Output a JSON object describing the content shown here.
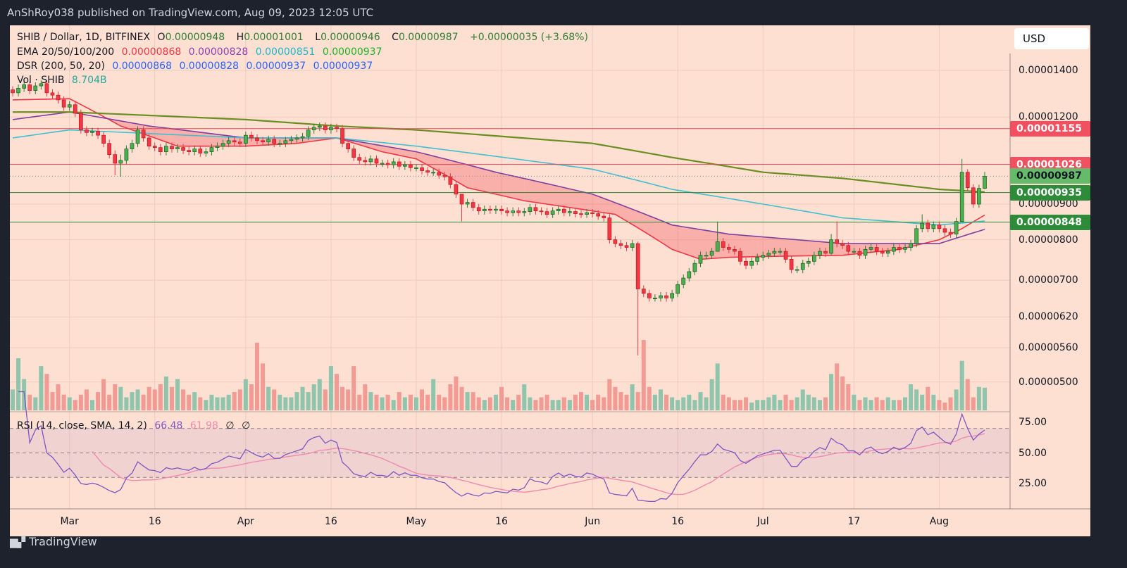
{
  "header": {
    "published": "AnShRoy038 published on TradingView.com, Aug 09, 2023 12:05 UTC"
  },
  "legend": {
    "symbol": "SHIB / Dollar, 1D, BITFINEX",
    "o_label": "O",
    "o": "0.00000948",
    "h_label": "H",
    "h": "0.00001001",
    "l_label": "L",
    "l": "0.00000946",
    "c_label": "C",
    "c": "0.00000987",
    "change": "+0.00000035 (+3.68%)",
    "ema_label": "EMA 20/50/100/200",
    "ema_values": [
      "0.00000868",
      "0.00000828",
      "0.00000851",
      "0.00000937"
    ],
    "dsr_label": "DSR (200, 50, 20)",
    "dsr_values": [
      "0.00000868",
      "0.00000828",
      "0.00000937",
      "0.00000937"
    ],
    "vol_label": "Vol · SHIB",
    "vol_value": "8.704B",
    "rsi_label": "RSI (14, close, SMA, 14, 2)",
    "rsi_values": [
      "66.48",
      "61.98",
      "∅",
      "∅"
    ]
  },
  "currency": "USD",
  "footer": {
    "brand": "TradingView",
    "logo": "TV"
  },
  "colors": {
    "up": "#4caf50",
    "down": "#f23645",
    "vol_up": "#8fc4ad",
    "vol_down": "#f29a94",
    "ema20": "#f23645",
    "ema50": "#7e3fa0",
    "ema100": "#3fbfd0",
    "ema200": "#6b8e23",
    "rsi": "#7e57c2",
    "rsi_sma": "#f08ab0",
    "bg": "#fde0d2"
  },
  "chart_data": {
    "type": "candlestick",
    "price_scale": "log",
    "price_ticks": [
      "0.00001400",
      "0.00001200",
      "0.00000900",
      "0.00000800",
      "0.00000700",
      "0.00000620",
      "0.00000560",
      "0.00000500"
    ],
    "x_ticks": [
      [
        "2023-03-01",
        "Mar"
      ],
      [
        "2023-03-16",
        "16"
      ],
      [
        "2023-04-01",
        "Apr"
      ],
      [
        "2023-04-16",
        "16"
      ],
      [
        "2023-05-01",
        "May"
      ],
      [
        "2023-05-16",
        "16"
      ],
      [
        "2023-06-01",
        "Jun"
      ],
      [
        "2023-06-16",
        "16"
      ],
      [
        "2023-07-01",
        "Jul"
      ],
      [
        "2023-07-17",
        "17"
      ],
      [
        "2023-08-01",
        "Aug"
      ]
    ],
    "levels": [
      {
        "price": "0.00001155",
        "color": "#f0505f",
        "text_color": "#ffffff"
      },
      {
        "price": "0.00001026",
        "color": "#f0505f",
        "text_color": "#ffffff"
      },
      {
        "price": "0.00000987",
        "color": "#66bb6a",
        "text_color": "#131722",
        "dotted": true
      },
      {
        "price": "0.00000935",
        "color": "#2e8b3a",
        "text_color": "#ffffff"
      },
      {
        "price": "0.00000848",
        "color": "#2e8b3a",
        "text_color": "#ffffff"
      }
    ],
    "rsi_ticks": [
      "75.00",
      "50.00",
      "25.00"
    ],
    "rsi_band": [
      30,
      70
    ],
    "candles_note_fields": [
      "date",
      "close",
      "volume_B",
      "high",
      "low"
    ],
    "candles": [
      [
        "2023-02-19",
        1.3e-05,
        8
      ],
      [
        "2023-02-20",
        1.32e-05,
        20
      ],
      [
        "2023-02-21",
        1.335e-05,
        12
      ],
      [
        "2023-02-22",
        1.31e-05,
        6
      ],
      [
        "2023-02-23",
        1.33e-05,
        5
      ],
      [
        "2023-02-24",
        1.34e-05,
        17
      ],
      [
        "2023-02-25",
        1.3e-05,
        14
      ],
      [
        "2023-02-26",
        1.29e-05,
        7
      ],
      [
        "2023-02-27",
        1.27e-05,
        10
      ],
      [
        "2023-02-28",
        1.24e-05,
        6
      ],
      [
        "2023-03-01",
        1.25e-05,
        5
      ],
      [
        "2023-03-02",
        1.215e-05,
        4
      ],
      [
        "2023-03-03",
        1.15e-05,
        6
      ],
      [
        "2023-03-04",
        1.14e-05,
        8
      ],
      [
        "2023-03-05",
        1.145e-05,
        4
      ],
      [
        "2023-03-06",
        1.13e-05,
        7
      ],
      [
        "2023-03-07",
        1.1e-05,
        12
      ],
      [
        "2023-03-08",
        1.06e-05,
        6
      ],
      [
        "2023-03-09",
        1.03e-05,
        10,
        1.075e-05,
        9.9e-06
      ],
      [
        "2023-03-10",
        1.04e-05,
        9,
        1.06e-05,
        9.85e-06
      ],
      [
        "2023-03-11",
        1.08e-05,
        5
      ],
      [
        "2023-03-12",
        1.1e-05,
        7
      ],
      [
        "2023-03-13",
        1.15e-05,
        8
      ],
      [
        "2023-03-14",
        1.12e-05,
        6
      ],
      [
        "2023-03-15",
        1.09e-05,
        9
      ],
      [
        "2023-03-16",
        1.085e-05,
        8
      ],
      [
        "2023-03-17",
        1.07e-05,
        10
      ],
      [
        "2023-03-18",
        1.09e-05,
        13
      ],
      [
        "2023-03-19",
        1.08e-05,
        9
      ],
      [
        "2023-03-20",
        1.085e-05,
        12
      ],
      [
        "2023-03-21",
        1.075e-05,
        8
      ],
      [
        "2023-03-22",
        1.07e-05,
        6
      ],
      [
        "2023-03-23",
        1.08e-05,
        7
      ],
      [
        "2023-03-24",
        1.065e-05,
        5
      ],
      [
        "2023-03-25",
        1.07e-05,
        4
      ],
      [
        "2023-03-26",
        1.085e-05,
        6
      ],
      [
        "2023-03-27",
        1.09e-05,
        5
      ],
      [
        "2023-03-28",
        1.1e-05,
        5
      ],
      [
        "2023-03-29",
        1.11e-05,
        6
      ],
      [
        "2023-03-30",
        1.105e-05,
        7
      ],
      [
        "2023-03-31",
        1.1e-05,
        8
      ],
      [
        "2023-04-01",
        1.13e-05,
        12
      ],
      [
        "2023-04-02",
        1.12e-05,
        10
      ],
      [
        "2023-04-03",
        1.11e-05,
        26
      ],
      [
        "2023-04-04",
        1.105e-05,
        18
      ],
      [
        "2023-04-05",
        1.115e-05,
        9
      ],
      [
        "2023-04-06",
        1.1e-05,
        8
      ],
      [
        "2023-04-07",
        1.1e-05,
        6
      ],
      [
        "2023-04-08",
        1.11e-05,
        5
      ],
      [
        "2023-04-09",
        1.115e-05,
        5
      ],
      [
        "2023-04-10",
        1.12e-05,
        7
      ],
      [
        "2023-04-11",
        1.125e-05,
        9
      ],
      [
        "2023-04-12",
        1.15e-05,
        7
      ],
      [
        "2023-04-13",
        1.16e-05,
        10
      ],
      [
        "2023-04-14",
        1.165e-05,
        12
      ],
      [
        "2023-04-15",
        1.15e-05,
        8
      ],
      [
        "2023-04-16",
        1.16e-05,
        17
      ],
      [
        "2023-04-17",
        1.155e-05,
        14
      ],
      [
        "2023-04-18",
        1.1e-05,
        9
      ],
      [
        "2023-04-19",
        1.08e-05,
        8
      ],
      [
        "2023-04-20",
        1.05e-05,
        17
      ],
      [
        "2023-04-21",
        1.04e-05,
        6
      ],
      [
        "2023-04-22",
        1.035e-05,
        10
      ],
      [
        "2023-04-23",
        1.045e-05,
        7
      ],
      [
        "2023-04-24",
        1.03e-05,
        6
      ],
      [
        "2023-04-25",
        1.03e-05,
        5
      ],
      [
        "2023-04-26",
        1.025e-05,
        6
      ],
      [
        "2023-04-27",
        1.035e-05,
        4
      ],
      [
        "2023-04-28",
        1.02e-05,
        7
      ],
      [
        "2023-04-29",
        1.025e-05,
        5
      ],
      [
        "2023-04-30",
        1.015e-05,
        6
      ],
      [
        "2023-05-01",
        1.015e-05,
        5
      ],
      [
        "2023-05-02",
        1.005e-05,
        8
      ],
      [
        "2023-05-03",
        1e-05,
        6
      ],
      [
        "2023-05-04",
        1e-05,
        12
      ],
      [
        "2023-05-05",
        9.9e-06,
        6
      ],
      [
        "2023-05-06",
        9.85e-06,
        5
      ],
      [
        "2023-05-07",
        9.6e-06,
        10
      ],
      [
        "2023-05-08",
        9.3e-06,
        13
      ],
      [
        "2023-05-09",
        9e-06,
        9,
        9.3e-06,
        8.5e-06
      ],
      [
        "2023-05-10",
        9.05e-06,
        7
      ],
      [
        "2023-05-11",
        8.9e-06,
        7
      ],
      [
        "2023-05-12",
        8.8e-06,
        5
      ],
      [
        "2023-05-13",
        8.85e-06,
        4
      ],
      [
        "2023-05-14",
        8.82e-06,
        5
      ],
      [
        "2023-05-15",
        8.85e-06,
        6
      ],
      [
        "2023-05-16",
        8.8e-06,
        9
      ],
      [
        "2023-05-17",
        8.75e-06,
        5
      ],
      [
        "2023-05-18",
        8.8e-06,
        4
      ],
      [
        "2023-05-19",
        8.75e-06,
        6
      ],
      [
        "2023-05-20",
        8.78e-06,
        10
      ],
      [
        "2023-05-21",
        8.9e-06,
        5
      ],
      [
        "2023-05-22",
        8.8e-06,
        4
      ],
      [
        "2023-05-23",
        8.78e-06,
        5
      ],
      [
        "2023-05-24",
        8.7e-06,
        6
      ],
      [
        "2023-05-25",
        8.8e-06,
        4
      ],
      [
        "2023-05-26",
        8.85e-06,
        4
      ],
      [
        "2023-05-27",
        8.75e-06,
        5
      ],
      [
        "2023-05-28",
        8.78e-06,
        4
      ],
      [
        "2023-05-29",
        8.72e-06,
        6
      ],
      [
        "2023-05-30",
        8.7e-06,
        7
      ],
      [
        "2023-05-31",
        8.75e-06,
        6
      ],
      [
        "2023-06-01",
        8.72e-06,
        4
      ],
      [
        "2023-06-02",
        8.65e-06,
        6
      ],
      [
        "2023-06-03",
        8.6e-06,
        5
      ],
      [
        "2023-06-04",
        8e-06,
        12
      ],
      [
        "2023-06-05",
        7.9e-06,
        9
      ],
      [
        "2023-06-06",
        7.85e-06,
        7
      ],
      [
        "2023-06-07",
        7.8e-06,
        6
      ],
      [
        "2023-06-08",
        7.9e-06,
        10
      ],
      [
        "2023-06-09",
        6.8e-06,
        7,
        7.95e-06,
        5.46e-06
      ],
      [
        "2023-06-10",
        6.7e-06,
        27
      ],
      [
        "2023-06-11",
        6.6e-06,
        9
      ],
      [
        "2023-06-12",
        6.6e-06,
        6
      ],
      [
        "2023-06-13",
        6.65e-06,
        8
      ],
      [
        "2023-06-14",
        6.6e-06,
        6
      ],
      [
        "2023-06-15",
        6.7e-06,
        5
      ],
      [
        "2023-06-16",
        6.9e-06,
        4
      ],
      [
        "2023-06-17",
        7.05e-06,
        5
      ],
      [
        "2023-06-18",
        7.2e-06,
        6
      ],
      [
        "2023-06-19",
        7.4e-06,
        4
      ],
      [
        "2023-06-20",
        7.6e-06,
        7
      ],
      [
        "2023-06-21",
        7.6e-06,
        5
      ],
      [
        "2023-06-22",
        7.7e-06,
        12
      ],
      [
        "2023-06-23",
        7.95e-06,
        18,
        8.5e-06,
        7.8e-06
      ],
      [
        "2023-06-24",
        7.8e-06,
        6
      ],
      [
        "2023-06-25",
        7.75e-06,
        5
      ],
      [
        "2023-06-26",
        7.7e-06,
        4
      ],
      [
        "2023-06-27",
        7.45e-06,
        4
      ],
      [
        "2023-06-28",
        7.35e-06,
        5
      ],
      [
        "2023-06-29",
        7.45e-06,
        3
      ],
      [
        "2023-06-30",
        7.55e-06,
        4
      ],
      [
        "2023-07-01",
        7.6e-06,
        4
      ],
      [
        "2023-07-02",
        7.65e-06,
        5
      ],
      [
        "2023-07-03",
        7.7e-06,
        6
      ],
      [
        "2023-07-04",
        7.7e-06,
        4
      ],
      [
        "2023-07-05",
        7.5e-06,
        6
      ],
      [
        "2023-07-06",
        7.25e-06,
        4
      ],
      [
        "2023-07-07",
        7.25e-06,
        5
      ],
      [
        "2023-07-08",
        7.4e-06,
        8
      ],
      [
        "2023-07-09",
        7.45e-06,
        6
      ],
      [
        "2023-07-10",
        7.6e-06,
        5
      ],
      [
        "2023-07-11",
        7.7e-06,
        4
      ],
      [
        "2023-07-12",
        7.65e-06,
        5
      ],
      [
        "2023-07-13",
        8e-06,
        14,
        8.15e-06,
        7.6e-06
      ],
      [
        "2023-07-14",
        7.9e-06,
        18,
        8.5e-06,
        7.8e-06
      ],
      [
        "2023-07-15",
        7.85e-06,
        13
      ],
      [
        "2023-07-16",
        7.7e-06,
        10
      ],
      [
        "2023-07-17",
        7.7e-06,
        6
      ],
      [
        "2023-07-18",
        7.6e-06,
        4
      ],
      [
        "2023-07-19",
        7.75e-06,
        5
      ],
      [
        "2023-07-20",
        7.8e-06,
        4
      ],
      [
        "2023-07-21",
        7.7e-06,
        5
      ],
      [
        "2023-07-22",
        7.65e-06,
        4
      ],
      [
        "2023-07-23",
        7.7e-06,
        5
      ],
      [
        "2023-07-24",
        7.8e-06,
        4
      ],
      [
        "2023-07-25",
        7.75e-06,
        4
      ],
      [
        "2023-07-26",
        7.8e-06,
        5
      ],
      [
        "2023-07-27",
        7.9e-06,
        10
      ],
      [
        "2023-07-28",
        8.3e-06,
        8
      ],
      [
        "2023-07-29",
        8.45e-06,
        6,
        8.7e-06,
        8.2e-06
      ],
      [
        "2023-07-30",
        8.3e-06,
        9
      ],
      [
        "2023-07-31",
        8.4e-06,
        6
      ],
      [
        "2023-08-01",
        8.3e-06,
        4
      ],
      [
        "2023-08-02",
        8.2e-06,
        3
      ],
      [
        "2023-08-03",
        8.15e-06,
        5
      ],
      [
        "2023-08-04",
        8.5e-06,
        8
      ],
      [
        "2023-08-05",
        1e-05,
        19,
        1.045e-05,
        8.5e-06
      ],
      [
        "2023-08-06",
        9.5e-06,
        12,
        1.01e-05,
        9.4e-06
      ],
      [
        "2023-08-07",
        9e-06,
        5
      ],
      [
        "2023-08-08",
        9.48e-06,
        9
      ],
      [
        "2023-08-09",
        9.87e-06,
        8.704,
        1.001e-05,
        9.46e-06
      ]
    ],
    "ema_lines": [
      {
        "name": "EMA 20",
        "color_key": "ema20",
        "points": [
          [
            "2023-02-19",
            1.27e-05
          ],
          [
            "2023-03-01",
            1.275e-05
          ],
          [
            "2023-03-10",
            1.165e-05
          ],
          [
            "2023-03-20",
            1.09e-05
          ],
          [
            "2023-04-01",
            1.09e-05
          ],
          [
            "2023-04-10",
            1.1e-05
          ],
          [
            "2023-04-17",
            1.12e-05
          ],
          [
            "2023-04-25",
            1.07e-05
          ],
          [
            "2023-05-01",
            1.045e-05
          ],
          [
            "2023-05-10",
            9.5e-06
          ],
          [
            "2023-05-20",
            9.1e-06
          ],
          [
            "2023-06-01",
            8.8e-06
          ],
          [
            "2023-06-05",
            8.7e-06
          ],
          [
            "2023-06-15",
            7.75e-06
          ],
          [
            "2023-06-20",
            7.5e-06
          ],
          [
            "2023-06-25",
            7.55e-06
          ],
          [
            "2023-07-01",
            7.57e-06
          ],
          [
            "2023-07-15",
            7.6e-06
          ],
          [
            "2023-07-25",
            7.75e-06
          ],
          [
            "2023-08-01",
            8e-06
          ],
          [
            "2023-08-05",
            8.3e-06
          ],
          [
            "2023-08-09",
            8.68e-06
          ]
        ]
      },
      {
        "name": "EMA 50",
        "color_key": "ema50",
        "points": [
          [
            "2023-02-19",
            1.19e-05
          ],
          [
            "2023-03-01",
            1.22e-05
          ],
          [
            "2023-03-15",
            1.165e-05
          ],
          [
            "2023-04-01",
            1.12e-05
          ],
          [
            "2023-04-17",
            1.12e-05
          ],
          [
            "2023-05-01",
            1.07e-05
          ],
          [
            "2023-05-15",
            1e-05
          ],
          [
            "2023-06-01",
            9.3e-06
          ],
          [
            "2023-06-15",
            8.4e-06
          ],
          [
            "2023-06-25",
            8.15e-06
          ],
          [
            "2023-07-15",
            7.9e-06
          ],
          [
            "2023-08-01",
            7.9e-06
          ],
          [
            "2023-08-09",
            8.28e-06
          ]
        ]
      },
      {
        "name": "EMA 100",
        "color_key": "ema100",
        "points": [
          [
            "2023-02-19",
            1.12e-05
          ],
          [
            "2023-03-01",
            1.15e-05
          ],
          [
            "2023-04-01",
            1.12e-05
          ],
          [
            "2023-04-17",
            1.12e-05
          ],
          [
            "2023-05-01",
            1.09e-05
          ],
          [
            "2023-06-01",
            1.01e-05
          ],
          [
            "2023-06-15",
            9.45e-06
          ],
          [
            "2023-07-01",
            9e-06
          ],
          [
            "2023-07-15",
            8.6e-06
          ],
          [
            "2023-08-01",
            8.4e-06
          ],
          [
            "2023-08-09",
            8.51e-06
          ]
        ]
      },
      {
        "name": "EMA 200",
        "color_key": "ema200",
        "points": [
          [
            "2023-02-19",
            1.22e-05
          ],
          [
            "2023-03-01",
            1.22e-05
          ],
          [
            "2023-04-01",
            1.19e-05
          ],
          [
            "2023-04-17",
            1.165e-05
          ],
          [
            "2023-05-01",
            1.15e-05
          ],
          [
            "2023-06-01",
            1.1e-05
          ],
          [
            "2023-06-15",
            1.05e-05
          ],
          [
            "2023-07-01",
            1e-05
          ],
          [
            "2023-07-15",
            9.8e-06
          ],
          [
            "2023-08-01",
            9.45e-06
          ],
          [
            "2023-08-09",
            9.37e-06
          ]
        ]
      }
    ]
  }
}
